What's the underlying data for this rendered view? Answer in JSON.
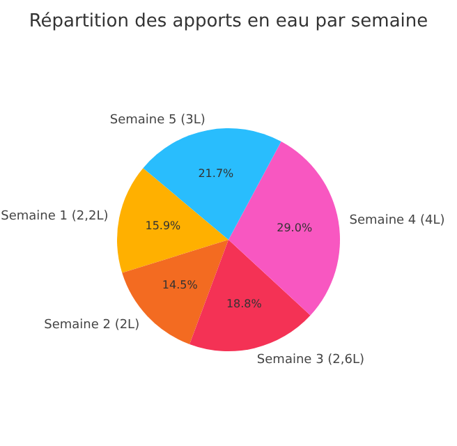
{
  "chart_data": {
    "type": "pie",
    "title": "Répartition des apports en eau par semaine",
    "categories": [
      "Semaine 1 (2,2L)",
      "Semaine 2 (2L)",
      "Semaine 3 (2,6L)",
      "Semaine 4 (4L)",
      "Semaine 5 (3L)"
    ],
    "values": [
      15.9,
      14.5,
      18.8,
      29.0,
      21.7
    ],
    "value_labels": [
      "15.9%",
      "14.5%",
      "18.8%",
      "29.0%",
      "21.7%"
    ],
    "colors": [
      "#ffb000",
      "#f36b21",
      "#f43255",
      "#f857c1",
      "#29bdfd"
    ]
  }
}
